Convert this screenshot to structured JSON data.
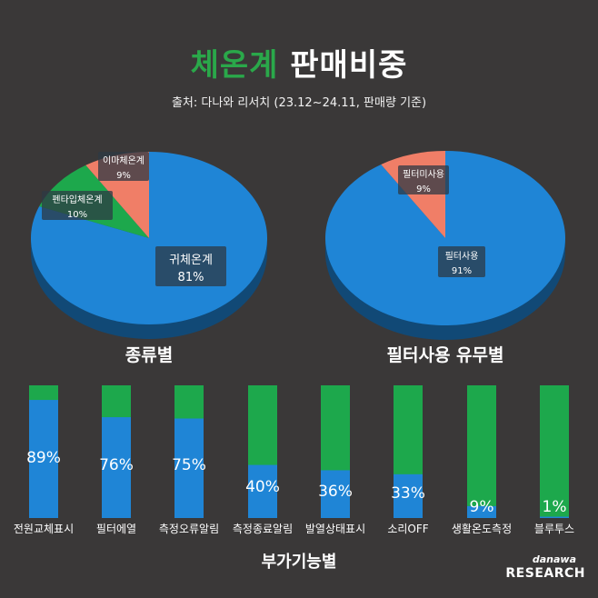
{
  "title": {
    "accent": "체온계",
    "rest": " 판매비중"
  },
  "source": "출처: 다나와 리서치 (23.12~24.11, 판매량 기준)",
  "colors": {
    "blue": "#1f85d6",
    "green": "#1da84c",
    "orange": "#f07e67",
    "background": "#3a3838"
  },
  "pies": [
    {
      "caption": "종류별"
    },
    {
      "caption": "필터사용 유무별"
    }
  ],
  "bar_section_caption": "부가기능별",
  "logo": {
    "line1": "danawa",
    "line2": "RESEARCH"
  },
  "chart_data": [
    {
      "type": "pie",
      "title": "종류별",
      "slices": [
        {
          "label": "귀체온계",
          "value": 81,
          "display": "81%",
          "color": "#1f85d6"
        },
        {
          "label": "펜타입체온계",
          "value": 10,
          "display": "10%",
          "color": "#1da84c"
        },
        {
          "label": "이마체온계",
          "value": 9,
          "display": "9%",
          "color": "#f07e67"
        }
      ]
    },
    {
      "type": "pie",
      "title": "필터사용 유무별",
      "slices": [
        {
          "label": "필터사용",
          "value": 91,
          "display": "91%",
          "color": "#1f85d6"
        },
        {
          "label": "필터미사용",
          "value": 9,
          "display": "9%",
          "color": "#f07e67"
        }
      ]
    },
    {
      "type": "bar",
      "title": "부가기능별",
      "categories": [
        "전원교체표시",
        "필터에열",
        "측정오류알림",
        "측정종료알림",
        "발열상태표시",
        "소리OFF",
        "생활온도측정",
        "블루투스"
      ],
      "values": [
        89,
        76,
        75,
        40,
        36,
        33,
        9,
        1
      ],
      "value_labels": [
        "89%",
        "76%",
        "75%",
        "40%",
        "36%",
        "33%",
        "9%",
        "1%"
      ],
      "ylim": [
        0,
        100
      ],
      "colors": {
        "value": "#1f85d6",
        "remainder": "#1da84c"
      }
    }
  ]
}
